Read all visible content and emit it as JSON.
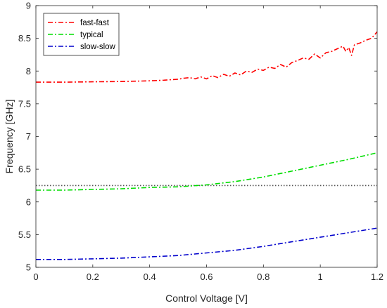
{
  "chart_data": {
    "type": "line",
    "title": "",
    "xlabel": "Control Voltage [V]",
    "ylabel": "Frequency [GHz]",
    "xlim": [
      0,
      1.2
    ],
    "ylim": [
      5,
      9
    ],
    "xticks": [
      0,
      0.2,
      0.4,
      0.6,
      0.8,
      1,
      1.2
    ],
    "xtick_labels": [
      "0",
      "0.2",
      "0.4",
      "0.6",
      "0.8",
      "1",
      "1.2"
    ],
    "yticks": [
      5,
      5.5,
      6,
      6.5,
      7,
      7.5,
      8,
      8.5,
      9
    ],
    "ytick_labels": [
      "5",
      "5.5",
      "6",
      "6.5",
      "7",
      "7.5",
      "8",
      "8.5",
      "9"
    ],
    "grid": false,
    "legend_position": "top-left",
    "series": [
      {
        "name": "fast-fast",
        "color": "#ff0000",
        "style": "dash-dot",
        "x": [
          0,
          0.1,
          0.2,
          0.3,
          0.4,
          0.45,
          0.5,
          0.52,
          0.54,
          0.56,
          0.58,
          0.6,
          0.62,
          0.64,
          0.66,
          0.68,
          0.7,
          0.72,
          0.74,
          0.76,
          0.78,
          0.8,
          0.82,
          0.84,
          0.86,
          0.88,
          0.9,
          0.92,
          0.94,
          0.96,
          0.98,
          1.0,
          1.02,
          1.04,
          1.06,
          1.08,
          1.09,
          1.1,
          1.11,
          1.12,
          1.14,
          1.16,
          1.18,
          1.19,
          1.2
        ],
        "y": [
          7.83,
          7.83,
          7.835,
          7.84,
          7.85,
          7.86,
          7.875,
          7.89,
          7.9,
          7.88,
          7.91,
          7.88,
          7.93,
          7.9,
          7.95,
          7.92,
          7.97,
          7.94,
          8.0,
          7.98,
          8.03,
          8.01,
          8.06,
          8.04,
          8.1,
          8.06,
          8.13,
          8.16,
          8.2,
          8.18,
          8.26,
          8.2,
          8.28,
          8.3,
          8.34,
          8.38,
          8.3,
          8.36,
          8.24,
          8.4,
          8.43,
          8.47,
          8.5,
          8.55,
          8.6
        ]
      },
      {
        "name": "typical",
        "color": "#00dd00",
        "style": "dash-dot",
        "x": [
          0,
          0.1,
          0.2,
          0.3,
          0.4,
          0.5,
          0.6,
          0.7,
          0.8,
          0.9,
          1.0,
          1.1,
          1.2
        ],
        "y": [
          6.18,
          6.18,
          6.19,
          6.2,
          6.22,
          6.23,
          6.26,
          6.31,
          6.38,
          6.47,
          6.56,
          6.65,
          6.75
        ]
      },
      {
        "name": "slow-slow",
        "color": "#0000cc",
        "style": "dash-dot",
        "x": [
          0,
          0.1,
          0.2,
          0.3,
          0.4,
          0.5,
          0.6,
          0.7,
          0.8,
          0.9,
          1.0,
          1.1,
          1.2
        ],
        "y": [
          5.12,
          5.12,
          5.13,
          5.14,
          5.16,
          5.18,
          5.22,
          5.26,
          5.32,
          5.39,
          5.46,
          5.53,
          5.6
        ]
      }
    ],
    "reference_lines": [
      {
        "orientation": "horizontal",
        "y": 6.25,
        "color": "#555555",
        "style": "dotted"
      }
    ]
  }
}
